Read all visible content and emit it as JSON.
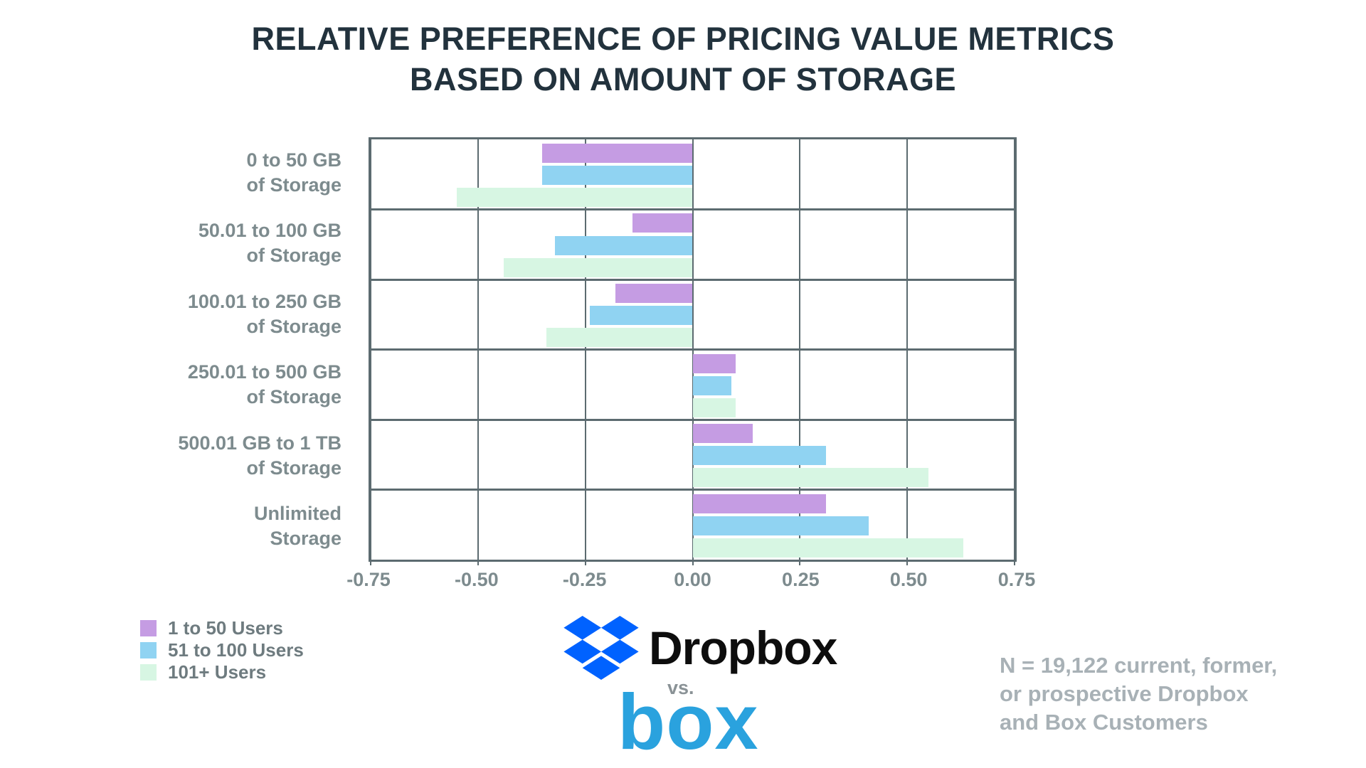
{
  "title": {
    "line1": "RELATIVE PREFERENCE OF PRICING VALUE METRICS",
    "line2": "BASED ON AMOUNT OF STORAGE"
  },
  "chart_data": {
    "type": "bar",
    "orientation": "horizontal",
    "title": "Relative preference of pricing value metrics based on amount of storage",
    "categories": [
      "0 to 50 GB of Storage",
      "50.01 to 100 GB of Storage",
      "100.01 to 250 GB of Storage",
      "250.01 to 500 GB of Storage",
      "500.01 GB to 1 TB of Storage",
      "Unlimited Storage"
    ],
    "category_lines": [
      {
        "line1": "0 to 50 GB",
        "line2": "of Storage"
      },
      {
        "line1": "50.01 to 100 GB",
        "line2": "of Storage"
      },
      {
        "line1": "100.01 to 250 GB",
        "line2": "of Storage"
      },
      {
        "line1": "250.01 to 500 GB",
        "line2": "of Storage"
      },
      {
        "line1": "500.01 GB to 1 TB",
        "line2": "of Storage"
      },
      {
        "line1": "Unlimited",
        "line2": "Storage"
      }
    ],
    "series": [
      {
        "name": "1 to 50 Users",
        "color": "#c59ce3",
        "values": [
          -0.35,
          -0.14,
          -0.18,
          0.1,
          0.14,
          0.31
        ]
      },
      {
        "name": "51 to 100 Users",
        "color": "#90d3f2",
        "values": [
          -0.35,
          -0.32,
          -0.24,
          0.09,
          0.31,
          0.41
        ]
      },
      {
        "name": "101+ Users",
        "color": "#d7f6e3",
        "values": [
          -0.55,
          -0.44,
          -0.34,
          0.1,
          0.55,
          0.63
        ]
      }
    ],
    "xlim": [
      -0.75,
      0.75
    ],
    "xticks": [
      -0.75,
      -0.5,
      -0.25,
      0,
      0.25,
      0.5,
      0.75
    ],
    "xtick_labels": [
      "-0.75",
      "-0.50",
      "-0.25",
      "0.00",
      "0.25",
      "0.50",
      "0.75"
    ],
    "grid": true,
    "legend_position": "bottom-left",
    "grid_color": "#5c6b70",
    "label_color": "#7d8b8e"
  },
  "branding": {
    "dropbox_label": "Dropbox",
    "vs_label": "vs.",
    "box_label": "box",
    "dropbox_blue": "#0062ff",
    "box_blue": "#2aa2de"
  },
  "footnote": {
    "line1": "N = 19,122 current, former,",
    "line2": "or prospective Dropbox",
    "line3": "and Box Customers"
  }
}
